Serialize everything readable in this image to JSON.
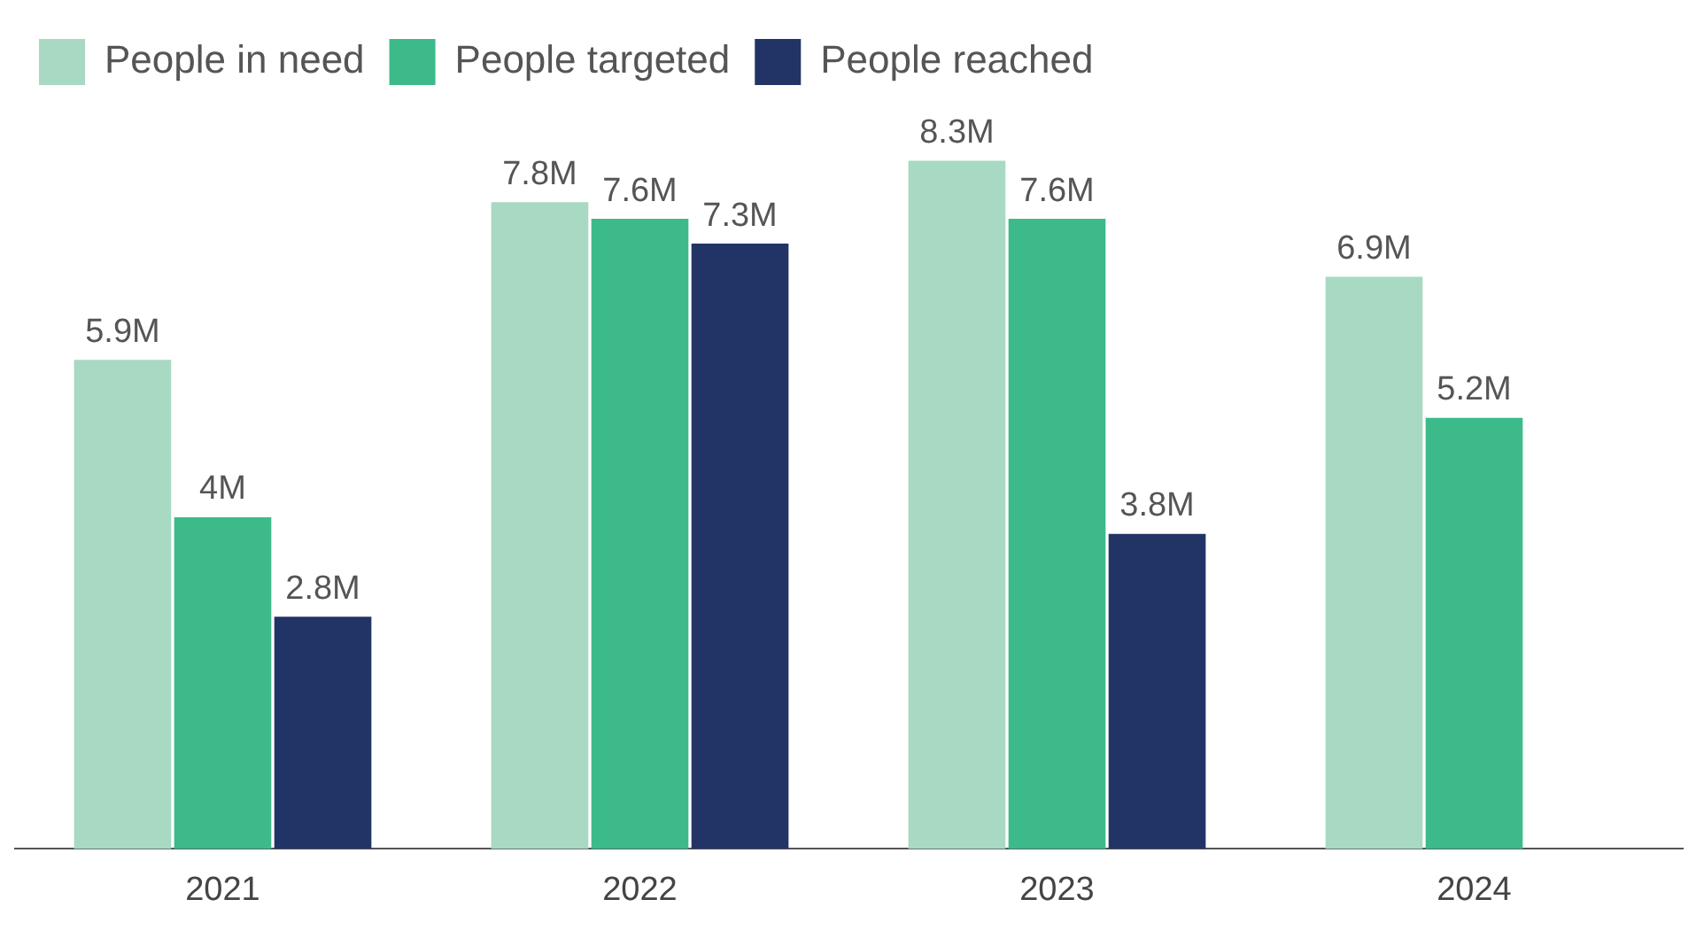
{
  "chart_data": {
    "type": "bar",
    "categories": [
      "2021",
      "2022",
      "2023",
      "2024"
    ],
    "series": [
      {
        "name": "People in need",
        "color": "#a8d9c2",
        "values": [
          5.9,
          7.8,
          8.3,
          6.9
        ],
        "value_labels": [
          "5.9M",
          "7.8M",
          "8.3M",
          "6.9M"
        ]
      },
      {
        "name": "People targeted",
        "color": "#3dba8a",
        "values": [
          4,
          7.6,
          7.6,
          5.2
        ],
        "value_labels": [
          "4M",
          "7.6M",
          "7.6M",
          "5.2M"
        ]
      },
      {
        "name": "People reached",
        "color": "#223466",
        "values": [
          2.8,
          7.3,
          3.8,
          null
        ],
        "value_labels": [
          "2.8M",
          "7.3M",
          "3.8M",
          null
        ]
      }
    ],
    "grid": false,
    "legend": "top left",
    "tick_labels": "x"
  }
}
